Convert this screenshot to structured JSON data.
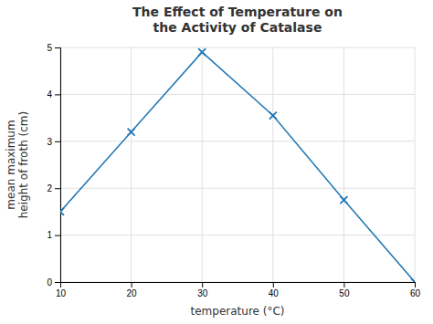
{
  "chart_data": {
    "type": "line",
    "title": "The Effect of Temperature on\nthe Activity of Catalase",
    "x_label": "temperature (°C)",
    "y_label": "mean maximum\nheight of froth (cm)",
    "x": [
      10,
      20,
      30,
      40,
      50,
      60
    ],
    "values": [
      1.5,
      3.2,
      4.9,
      3.55,
      1.75,
      0.0
    ],
    "xlim": [
      10,
      60
    ],
    "ylim": [
      0,
      5
    ],
    "xticks": [
      10,
      20,
      30,
      40,
      50,
      60
    ],
    "yticks": [
      0,
      1,
      2,
      3,
      4,
      5
    ],
    "marker": "x",
    "grid": true
  }
}
